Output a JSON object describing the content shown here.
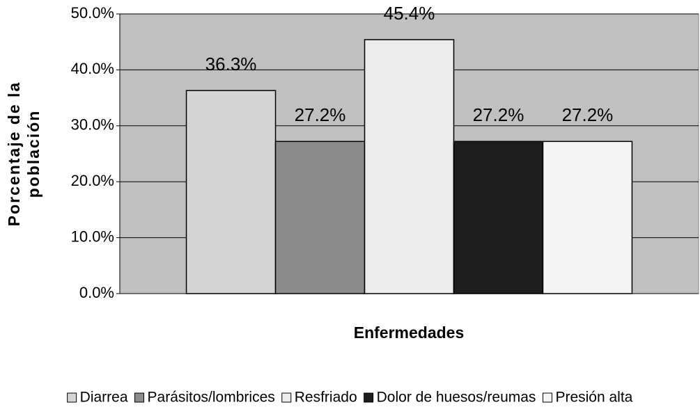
{
  "chart_data": {
    "type": "bar",
    "xlabel": "Enfermedades",
    "ylabel": [
      "Porcentaje de la",
      "población"
    ],
    "categories": [
      null
    ],
    "series": [
      {
        "name": "Diarrea",
        "color": "#d4d4d4",
        "values": [
          36.3
        ],
        "value_labels": [
          "36.3%"
        ]
      },
      {
        "name": "Parásitos/lombrices",
        "color": "#8c8c8c",
        "values": [
          27.2
        ],
        "value_labels": [
          "27.2%"
        ]
      },
      {
        "name": "Resfriado",
        "color": "#ececec",
        "values": [
          45.4
        ],
        "value_labels": [
          "45.4%"
        ]
      },
      {
        "name": "Dolor de huesos/reumas",
        "color": "#1e1e1e",
        "values": [
          27.2
        ],
        "value_labels": [
          "27.2%"
        ]
      },
      {
        "name": "Presión alta",
        "color": "#f4f4f4",
        "values": [
          27.2
        ],
        "value_labels": [
          "27.2%"
        ]
      }
    ],
    "ylim": [
      0,
      50
    ],
    "yticks": [
      {
        "value": 0,
        "label": "0.0%"
      },
      {
        "value": 10,
        "label": "10.0%"
      },
      {
        "value": 20,
        "label": "20.0%"
      },
      {
        "value": 30,
        "label": "30.0%"
      },
      {
        "value": 40,
        "label": "40.0%"
      },
      {
        "value": 50,
        "label": "50.0%"
      }
    ],
    "grid": true,
    "background": "#c0c0c0",
    "legend": "bottom"
  }
}
